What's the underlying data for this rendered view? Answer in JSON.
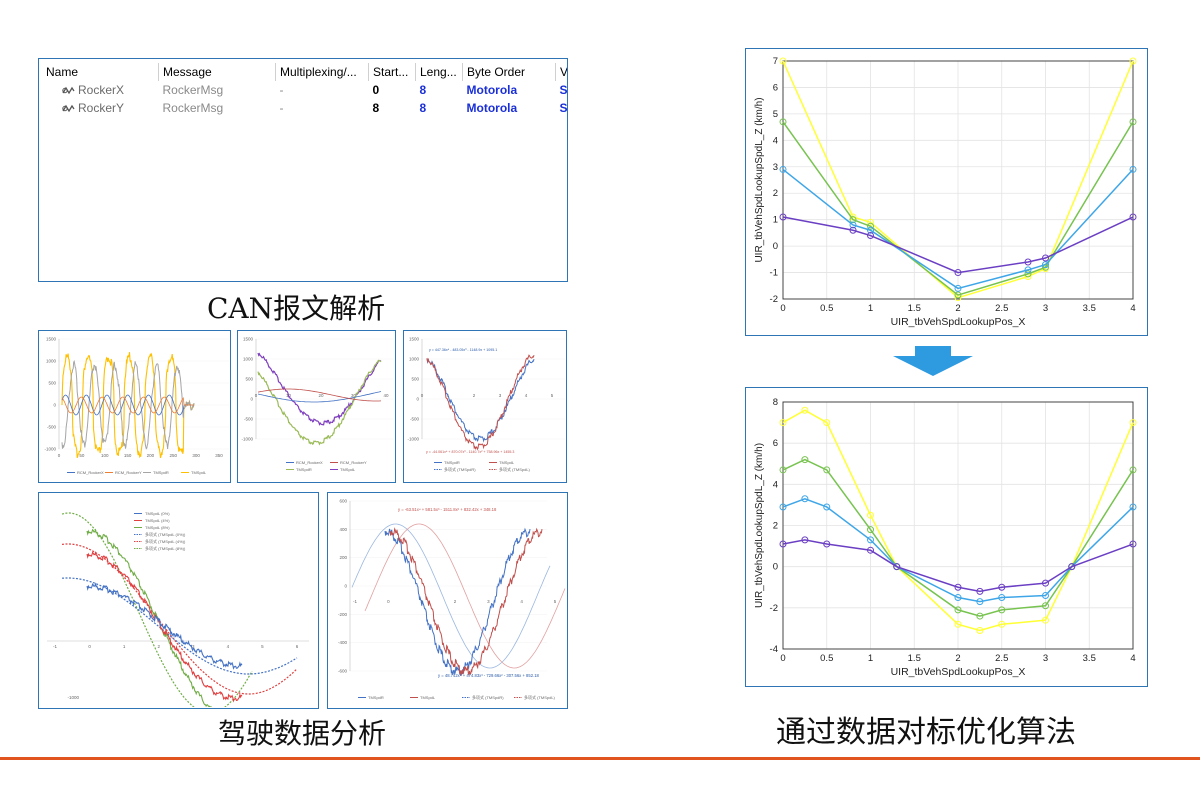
{
  "can_table": {
    "headers": [
      "Name",
      "Message",
      "Multiplexing/...",
      "Start...",
      "Leng...",
      "Byte Order",
      "V"
    ],
    "rows": [
      {
        "name": "RockerX",
        "message": "RockerMsg",
        "multiplexing": "-",
        "start": "0",
        "length": "8",
        "byte_order": "Motorola",
        "v": "Si"
      },
      {
        "name": "RockerY",
        "message": "RockerMsg",
        "multiplexing": "-",
        "start": "8",
        "length": "8",
        "byte_order": "Motorola",
        "v": "Si"
      }
    ]
  },
  "captions": {
    "can": "CAN报文解析",
    "driving": "驾驶数据分析",
    "optimization": "通过数据对标优化算法"
  },
  "arrow_color": "#2e9be0",
  "chart_data": [
    {
      "type": "line",
      "xlabel": "UIR_tbVehSpdLookupPos_X",
      "ylabel": "UIR_tbVehSpdLookupSpdL_Z (km/h)",
      "xlim": [
        0,
        4
      ],
      "ylim": [
        -2,
        7
      ],
      "xticks": [
        "0",
        "0.5",
        "1",
        "1.5",
        "2",
        "2.5",
        "3",
        "3.5",
        "4"
      ],
      "yticks": [
        "-2",
        "-1",
        "0",
        "1",
        "2",
        "3",
        "4",
        "5",
        "6",
        "7"
      ],
      "grid": true,
      "series": [
        {
          "color": "#ffff33",
          "x": [
            0,
            0.8,
            1,
            2,
            2.8,
            3,
            4
          ],
          "y": [
            7.0,
            1.1,
            0.9,
            -1.95,
            -1.15,
            -0.85,
            7.0
          ]
        },
        {
          "color": "#77c34f",
          "x": [
            0,
            0.8,
            1,
            2,
            2.8,
            3,
            4
          ],
          "y": [
            4.7,
            1.0,
            0.75,
            -1.85,
            -1.05,
            -0.8,
            4.7
          ]
        },
        {
          "color": "#3ea6e8",
          "x": [
            0,
            0.8,
            1,
            2,
            2.8,
            3,
            4
          ],
          "y": [
            2.9,
            0.8,
            0.6,
            -1.6,
            -0.9,
            -0.7,
            2.9
          ]
        },
        {
          "color": "#6b3fc4",
          "x": [
            0,
            0.8,
            1,
            2,
            2.8,
            3,
            4
          ],
          "y": [
            1.1,
            0.6,
            0.4,
            -1.0,
            -0.6,
            -0.45,
            1.1
          ]
        }
      ]
    },
    {
      "type": "line",
      "xlabel": "UIR_tbVehSpdLookupPos_X",
      "ylabel": "UIR_tbVehSpdLookupSpdL_Z (km/h)",
      "xlim": [
        0,
        4
      ],
      "ylim": [
        -4,
        8
      ],
      "xticks": [
        "0",
        "0.5",
        "1",
        "1.5",
        "2",
        "2.5",
        "3",
        "3.5",
        "4"
      ],
      "yticks": [
        "-4",
        "-2",
        "0",
        "2",
        "4",
        "6",
        "8"
      ],
      "grid": true,
      "series": [
        {
          "color": "#ffff33",
          "x": [
            0,
            0.25,
            0.5,
            1,
            1.3,
            2,
            2.25,
            2.5,
            3,
            3.3,
            4
          ],
          "y": [
            7.0,
            7.6,
            7.0,
            2.5,
            0,
            -2.8,
            -3.1,
            -2.8,
            -2.6,
            0,
            7.0
          ]
        },
        {
          "color": "#77c34f",
          "x": [
            0,
            0.25,
            0.5,
            1,
            1.3,
            2,
            2.25,
            2.5,
            3,
            3.3,
            4
          ],
          "y": [
            4.7,
            5.2,
            4.7,
            1.8,
            0,
            -2.1,
            -2.4,
            -2.1,
            -1.9,
            0,
            4.7
          ]
        },
        {
          "color": "#3ea6e8",
          "x": [
            0,
            0.25,
            0.5,
            1,
            1.3,
            2,
            2.25,
            2.5,
            3,
            3.3,
            4
          ],
          "y": [
            2.9,
            3.3,
            2.9,
            1.3,
            0,
            -1.5,
            -1.7,
            -1.5,
            -1.4,
            0,
            2.9
          ]
        },
        {
          "color": "#6b3fc4",
          "x": [
            0,
            0.25,
            0.5,
            1,
            1.3,
            2,
            2.25,
            2.5,
            3,
            3.3,
            4
          ],
          "y": [
            1.1,
            1.3,
            1.1,
            0.8,
            0,
            -1.0,
            -1.2,
            -1.0,
            -0.8,
            0,
            1.1
          ]
        }
      ]
    }
  ],
  "thumbnails": {
    "t1": {
      "yticks": [
        "1500",
        "1000",
        "500",
        "0",
        "-500",
        "-1000"
      ],
      "xticks": [
        "0",
        "50",
        "100",
        "150",
        "200",
        "250",
        "300",
        "350"
      ],
      "legend": [
        "RCM_RockerX",
        "RCM_RockerY",
        "TMSpdR",
        "TMSpdL"
      ],
      "colors": [
        "#4472c4",
        "#ed7d31",
        "#a5a5a5",
        "#ffc000"
      ]
    },
    "t2": {
      "yticks": [
        "1500",
        "1000",
        "500",
        "0",
        "-500",
        "-1000"
      ],
      "xticks": [
        "0",
        "10",
        "20",
        "30",
        "40"
      ],
      "legend": [
        "RCM_RockerX",
        "RCM_RockerY",
        "TMSpdR",
        "TMSpdL"
      ],
      "colors": [
        "#4472c4",
        "#c0504d",
        "#9bbb59",
        "#7f3fbf"
      ]
    },
    "t3": {
      "yticks": [
        "1500",
        "1000",
        "500",
        "0",
        "-500",
        "-1000"
      ],
      "xticks": [
        "0",
        "1",
        "2",
        "3",
        "4",
        "5"
      ],
      "eq_top": "y = 447.36x⁴ - 483.05x³ - 1148.9x + 1095.1",
      "eq_bottom": "y = -44.061x⁴ + 870.07x³ - 1140.7x² + 758.96x + 1455.3",
      "legend": [
        "TMSpdR",
        "TMSpdL",
        "多项式 (TMSpdR)",
        "多项式 (TMSpdL)"
      ],
      "colors": [
        "#4472c4",
        "#c0504d"
      ]
    },
    "t4": {
      "xticks": [
        "-1",
        "0",
        "1",
        "2",
        "3",
        "4",
        "5",
        "6"
      ],
      "ytick_bottom": "-1000",
      "legend": [
        "TMSpdL (0%)",
        "TMSpdL (4%)",
        "TMSpdL (8%)",
        "多项式 (TMSpdL (0%))",
        "多项式 (TMSpdL (4%))",
        "多项式 (TMSpdL (8%))"
      ],
      "colors": [
        "#4472c4",
        "#e04040",
        "#70ad47"
      ]
    },
    "t5": {
      "yticks": [
        "600",
        "400",
        "200",
        "0",
        "-200",
        "-400",
        "-600"
      ],
      "xticks": [
        "-1",
        "0",
        "1",
        "2",
        "3",
        "4",
        "5"
      ],
      "eq_top": "y = -63.51x⁴ + 581.5x³ - 1511.8x² + 832.42x + 348.18",
      "eq_bottom": "y = 48.742x⁴ + 474.83x³ - 729.66x² - 307.56x + 852.18",
      "legend": [
        "TMSpdR",
        "TMSpdL",
        "多项式 (TMSpdR)",
        "多项式 (TMSpdL)"
      ],
      "colors": [
        "#4472c4",
        "#c0504d"
      ]
    }
  }
}
